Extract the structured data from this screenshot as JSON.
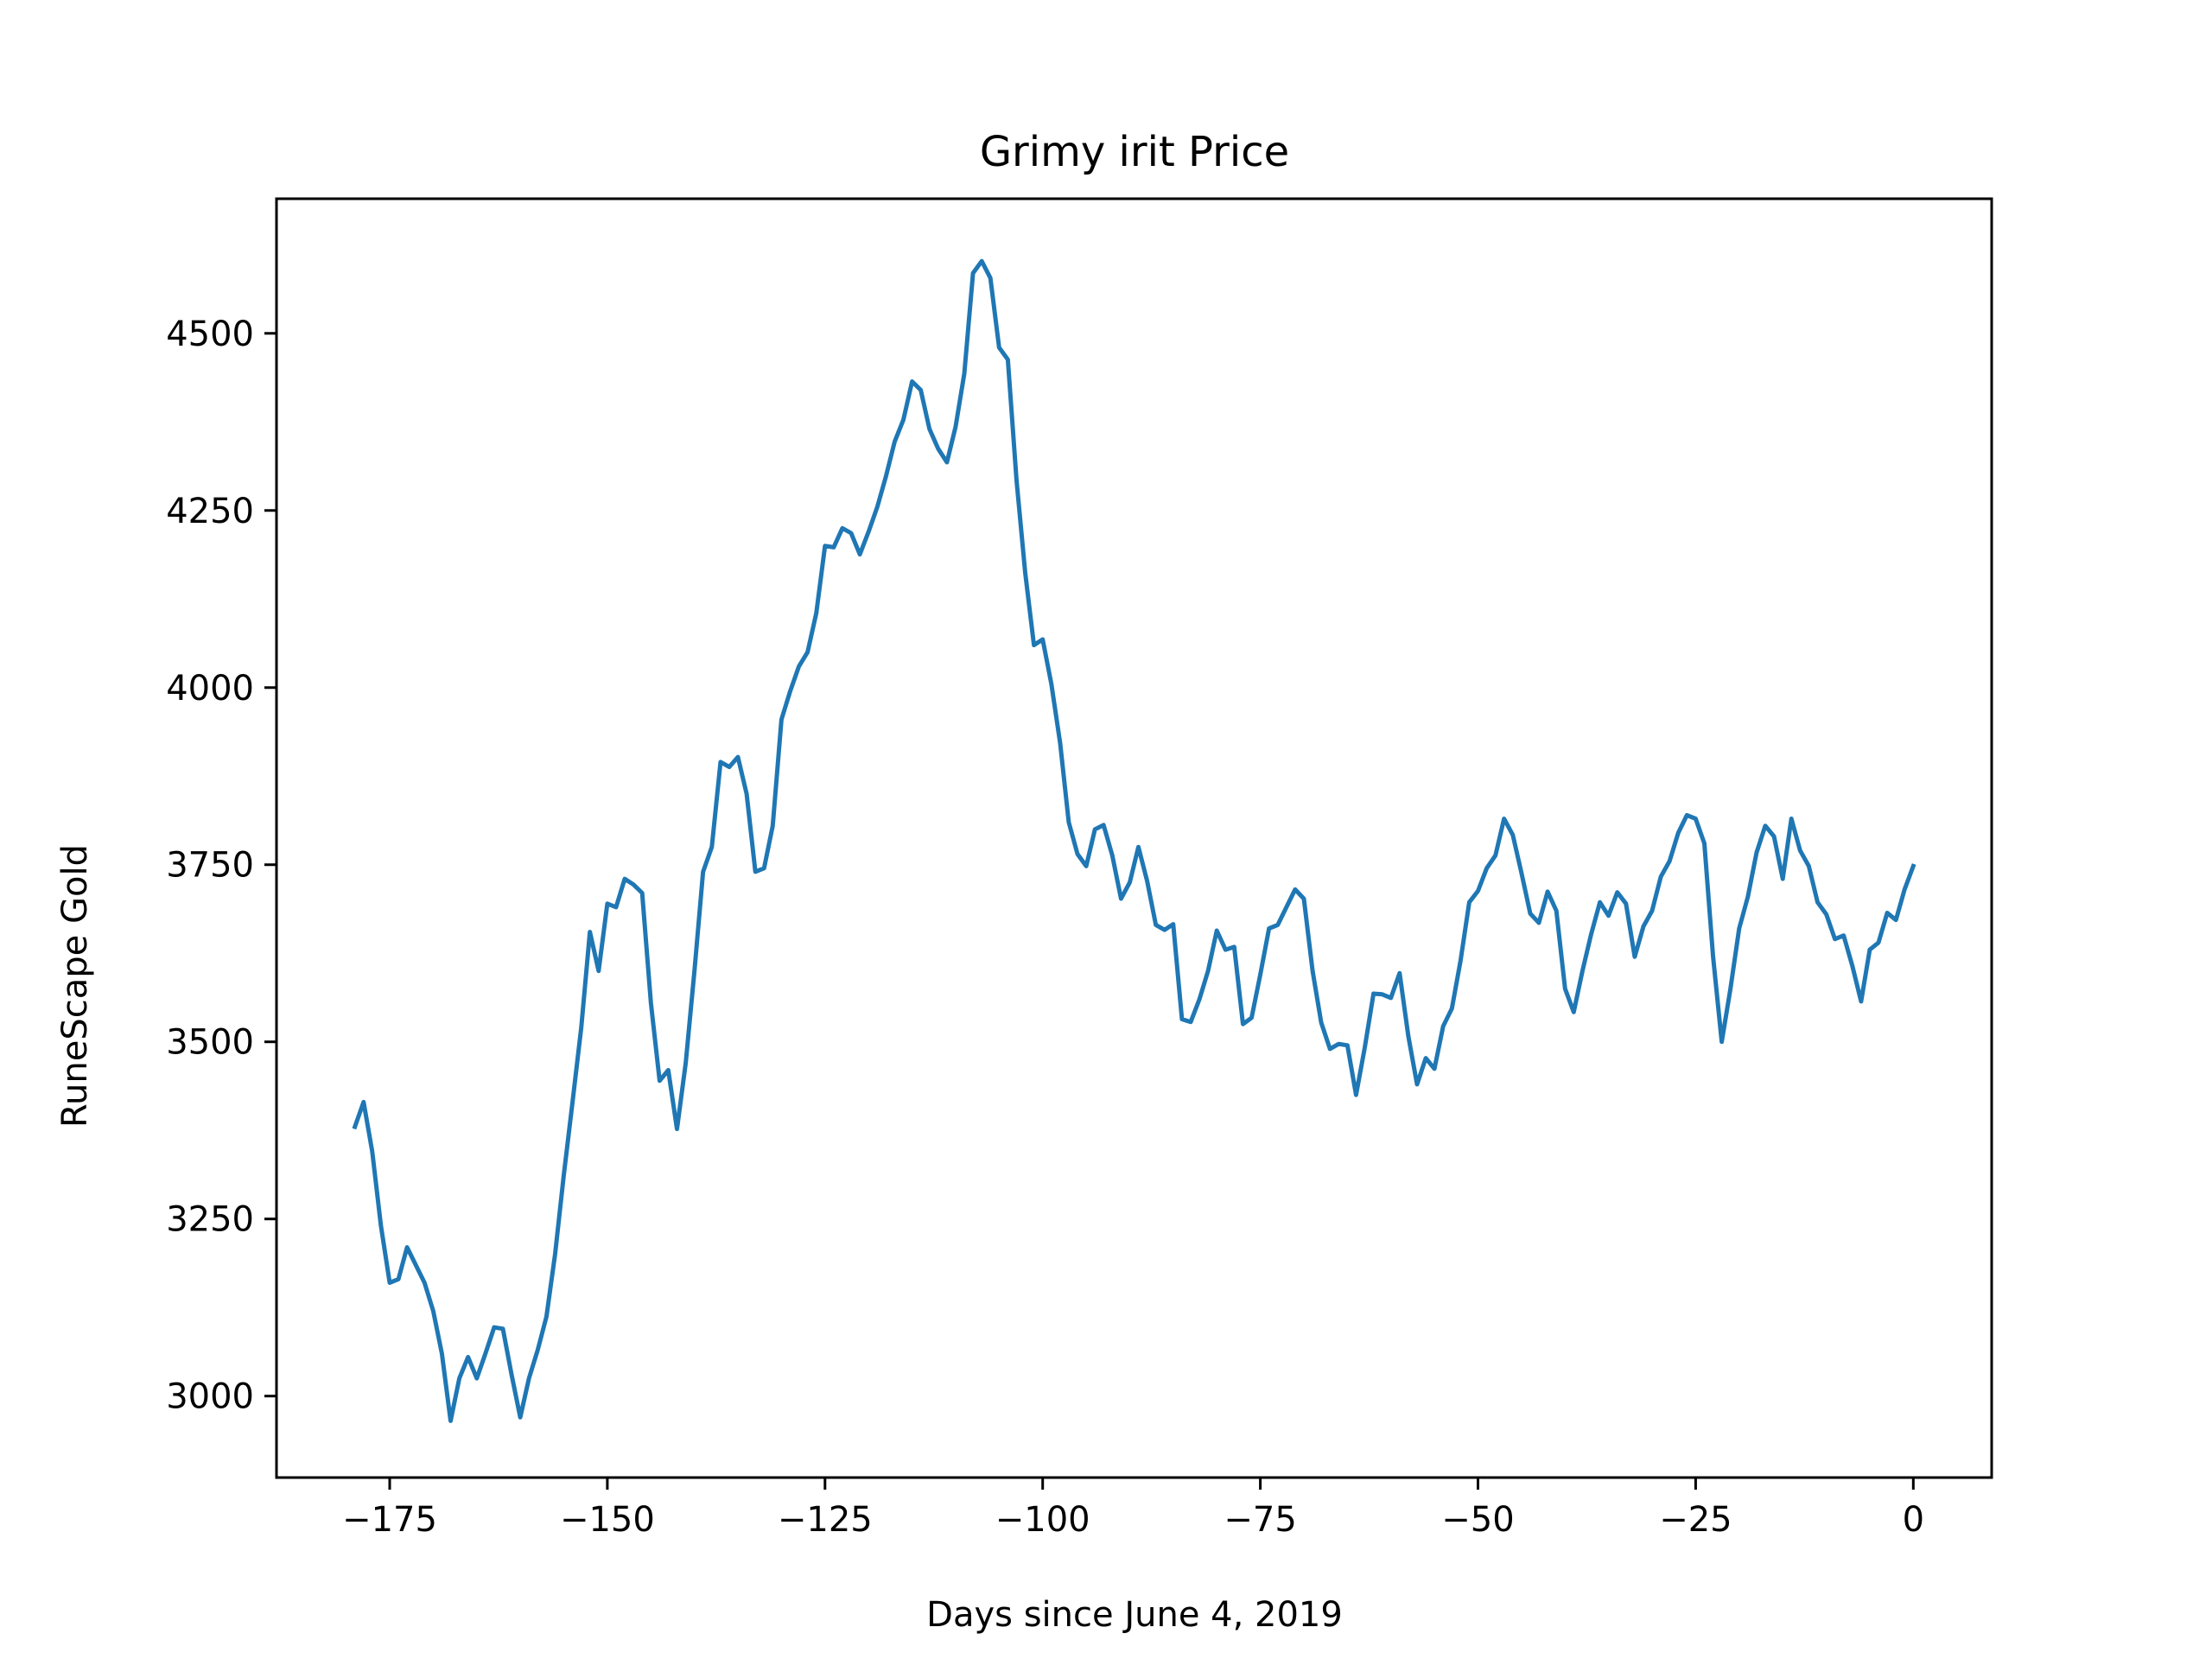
{
  "chart_data": {
    "type": "line",
    "title": "Grimy irit Price",
    "xlabel": "Days since June 4, 2019",
    "ylabel": "RuneScape Gold",
    "xlim": [
      -188,
      9
    ],
    "ylim": [
      2885,
      4690
    ],
    "xticks": [
      -175,
      -150,
      -125,
      -100,
      -75,
      -50,
      -25,
      0
    ],
    "xtick_labels": [
      "−175",
      "−150",
      "−125",
      "−100",
      "−75",
      "−50",
      "−25",
      "0"
    ],
    "yticks": [
      3000,
      3250,
      3500,
      3750,
      4000,
      4250,
      4500
    ],
    "ytick_labels": [
      "3000",
      "3250",
      "3500",
      "3750",
      "4000",
      "4250",
      "4500"
    ],
    "grid": false,
    "series": [
      {
        "color": "#1f77b4",
        "x": [
          -179,
          -178,
          -177,
          -176,
          -175,
          -174,
          -173,
          -172,
          -171,
          -170,
          -169,
          -168,
          -167,
          -166,
          -165,
          -164,
          -163,
          -162,
          -161,
          -160,
          -159,
          -158,
          -157,
          -156,
          -155,
          -154,
          -153,
          -152,
          -151,
          -150,
          -149,
          -148,
          -147,
          -146,
          -145,
          -144,
          -143,
          -142,
          -141,
          -140,
          -139,
          -138,
          -137,
          -136,
          -135,
          -134,
          -133,
          -132,
          -131,
          -130,
          -129,
          -128,
          -127,
          -126,
          -125,
          -124,
          -123,
          -122,
          -121,
          -120,
          -119,
          -118,
          -117,
          -116,
          -115,
          -114,
          -113,
          -112,
          -111,
          -110,
          -109,
          -108,
          -107,
          -106,
          -105,
          -104,
          -103,
          -102,
          -101,
          -100,
          -99,
          -98,
          -97,
          -96,
          -95,
          -94,
          -93,
          -92,
          -91,
          -90,
          -89,
          -88,
          -87,
          -86,
          -85,
          -84,
          -83,
          -82,
          -81,
          -80,
          -79,
          -78,
          -77,
          -76,
          -75,
          -74,
          -73,
          -72,
          -71,
          -70,
          -69,
          -68,
          -67,
          -66,
          -65,
          -64,
          -63,
          -62,
          -61,
          -60,
          -59,
          -58,
          -57,
          -56,
          -55,
          -54,
          -53,
          -52,
          -51,
          -50,
          -49,
          -48,
          -47,
          -46,
          -45,
          -44,
          -43,
          -42,
          -41,
          -40,
          -39,
          -38,
          -37,
          -36,
          -35,
          -34,
          -33,
          -32,
          -31,
          -30,
          -29,
          -28,
          -27,
          -26,
          -25,
          -24,
          -23,
          -22,
          -21,
          -20,
          -19,
          -18,
          -17,
          -16,
          -15,
          -14,
          -13,
          -12,
          -11,
          -10,
          -9,
          -8,
          -7,
          -6,
          -5,
          -4,
          -3,
          -2,
          -1,
          0
        ],
        "y": [
          3380,
          3415,
          3345,
          3240,
          3160,
          3165,
          3210,
          3185,
          3160,
          3120,
          3060,
          2965,
          3025,
          3055,
          3025,
          3060,
          3097,
          3095,
          3030,
          2970,
          3025,
          3065,
          3112,
          3200,
          3312,
          3415,
          3520,
          3655,
          3600,
          3695,
          3690,
          3730,
          3722,
          3710,
          3555,
          3445,
          3460,
          3377,
          3470,
          3600,
          3740,
          3775,
          3895,
          3888,
          3902,
          3850,
          3740,
          3745,
          3805,
          3955,
          3995,
          4030,
          4050,
          4105,
          4200,
          4198,
          4225,
          4218,
          4188,
          4220,
          4255,
          4298,
          4347,
          4378,
          4432,
          4420,
          4365,
          4337,
          4318,
          4368,
          4443,
          4585,
          4602,
          4578,
          4480,
          4463,
          4292,
          4162,
          4060,
          4068,
          4005,
          3922,
          3810,
          3765,
          3748,
          3800,
          3806,
          3763,
          3702,
          3725,
          3775,
          3727,
          3665,
          3658,
          3666,
          3532,
          3528,
          3560,
          3600,
          3657,
          3630,
          3634,
          3525,
          3534,
          3595,
          3660,
          3665,
          3690,
          3715,
          3702,
          3600,
          3527,
          3490,
          3497,
          3495,
          3425,
          3492,
          3568,
          3567,
          3562,
          3597,
          3508,
          3440,
          3477,
          3462,
          3522,
          3547,
          3615,
          3697,
          3713,
          3745,
          3763,
          3815,
          3792,
          3738,
          3681,
          3668,
          3712,
          3685,
          3575,
          3542,
          3600,
          3652,
          3697,
          3678,
          3711,
          3695,
          3620,
          3663,
          3685,
          3733,
          3755,
          3795,
          3820,
          3815,
          3780,
          3620,
          3500,
          3575,
          3660,
          3705,
          3767,
          3805,
          3790,
          3730,
          3815,
          3770,
          3748,
          3697,
          3680,
          3645,
          3650,
          3607,
          3557,
          3630,
          3640,
          3682,
          3672,
          3715,
          3748
        ]
      }
    ]
  }
}
